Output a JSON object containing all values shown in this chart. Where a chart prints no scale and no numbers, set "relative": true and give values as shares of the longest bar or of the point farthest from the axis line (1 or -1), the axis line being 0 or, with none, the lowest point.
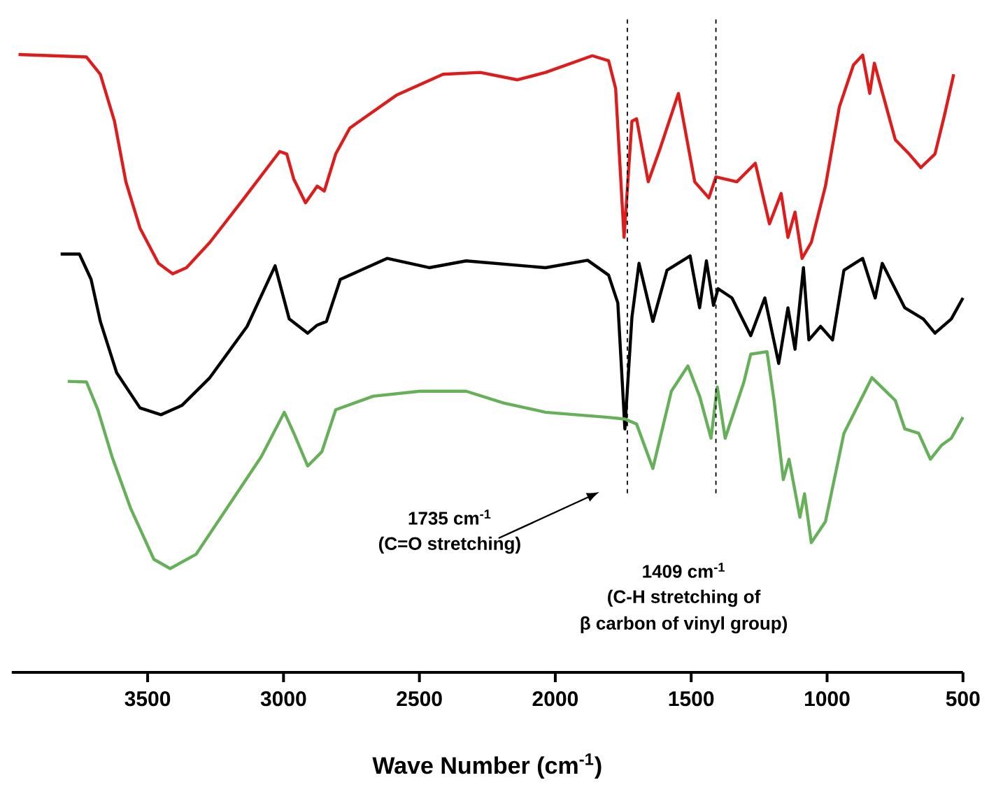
{
  "chart_data": {
    "type": "line",
    "relative": true,
    "xlabel": "Wave Number (cm$^{-1}$)",
    "xlim": [
      4000,
      500
    ],
    "xticks": [
      3500,
      3000,
      2500,
      2000,
      1500,
      1000,
      500
    ],
    "series": [
      {
        "color": "#dd1c1c",
        "x": [
          3975,
          3725,
          3674,
          3622,
          3580,
          3528,
          3460,
          3408,
          3357,
          3271,
          3151,
          3014,
          2988,
          2962,
          2919,
          2876,
          2850,
          2808,
          2756,
          2585,
          2413,
          2276,
          2139,
          2036,
          1864,
          1804,
          1778,
          1747,
          1718,
          1701,
          1658,
          1615,
          1547,
          1487,
          1435,
          1409,
          1332,
          1264,
          1212,
          1169,
          1144,
          1118,
          1092,
          1058,
          1006,
          955,
          903,
          869,
          843,
          826,
          749,
          698,
          655,
          603,
          569,
          534
        ],
        "values": [
          1.0,
          0.996,
          0.968,
          0.892,
          0.794,
          0.719,
          0.662,
          0.645,
          0.655,
          0.696,
          0.764,
          0.843,
          0.839,
          0.798,
          0.76,
          0.787,
          0.779,
          0.839,
          0.881,
          0.934,
          0.968,
          0.971,
          0.959,
          0.971,
          0.998,
          0.99,
          0.945,
          0.704,
          0.892,
          0.896,
          0.794,
          0.847,
          0.937,
          0.794,
          0.768,
          0.802,
          0.794,
          0.824,
          0.726,
          0.775,
          0.704,
          0.745,
          0.67,
          0.696,
          0.787,
          0.915,
          0.983,
          0.999,
          0.937,
          0.986,
          0.862,
          0.839,
          0.817,
          0.839,
          0.9,
          0.968
        ]
      },
      {
        "color": "#000000",
        "x": [
          3820,
          3751,
          3708,
          3674,
          3614,
          3528,
          3451,
          3374,
          3271,
          3134,
          3031,
          2979,
          2911,
          2876,
          2842,
          2791,
          2619,
          2464,
          2328,
          2036,
          1881,
          1804,
          1770,
          1744,
          1718,
          1692,
          1641,
          1589,
          1504,
          1469,
          1444,
          1418,
          1401,
          1350,
          1281,
          1229,
          1178,
          1144,
          1118,
          1087,
          1067,
          1024,
          980,
          938,
          869,
          823,
          797,
          714,
          646,
          603,
          543,
          500
        ],
        "values": [
          0.677,
          0.677,
          0.636,
          0.568,
          0.485,
          0.428,
          0.417,
          0.432,
          0.477,
          0.56,
          0.658,
          0.572,
          0.549,
          0.562,
          0.568,
          0.636,
          0.67,
          0.655,
          0.666,
          0.655,
          0.667,
          0.643,
          0.598,
          0.394,
          0.575,
          0.662,
          0.568,
          0.651,
          0.674,
          0.59,
          0.666,
          0.594,
          0.621,
          0.606,
          0.545,
          0.606,
          0.5,
          0.59,
          0.523,
          0.655,
          0.538,
          0.56,
          0.538,
          0.651,
          0.67,
          0.606,
          0.662,
          0.59,
          0.572,
          0.549,
          0.572,
          0.606
        ]
      },
      {
        "color": "#66b05a",
        "x": [
          3794,
          3725,
          3683,
          3631,
          3563,
          3477,
          3417,
          3322,
          3185,
          3082,
          2997,
          2962,
          2911,
          2859,
          2808,
          2670,
          2499,
          2328,
          2190,
          2036,
          1813,
          1744,
          1701,
          1641,
          1573,
          1512,
          1469,
          1427,
          1404,
          1375,
          1306,
          1281,
          1221,
          1195,
          1161,
          1140,
          1100,
          1083,
          1058,
          1006,
          938,
          835,
          749,
          714,
          663,
          620,
          578,
          543,
          500
        ],
        "values": [
          0.471,
          0.47,
          0.425,
          0.349,
          0.266,
          0.183,
          0.168,
          0.191,
          0.281,
          0.349,
          0.421,
          0.387,
          0.334,
          0.357,
          0.425,
          0.447,
          0.455,
          0.455,
          0.436,
          0.421,
          0.413,
          0.41,
          0.402,
          0.33,
          0.455,
          0.496,
          0.447,
          0.379,
          0.462,
          0.379,
          0.47,
          0.515,
          0.519,
          0.44,
          0.312,
          0.345,
          0.251,
          0.289,
          0.21,
          0.244,
          0.387,
          0.477,
          0.44,
          0.394,
          0.387,
          0.345,
          0.368,
          0.379,
          0.413
        ]
      }
    ],
    "ref_lines": [
      {
        "axis": "x",
        "value": 1735,
        "color": "#000000",
        "line_style": "dashed"
      },
      {
        "axis": "x",
        "value": 1409,
        "color": "#000000",
        "line_style": "dashed"
      }
    ],
    "annotations": [
      "1735 cm$^{-1}$",
      "(C=O stretching)",
      "1409 cm$^{-1}$",
      "(C-H stretching of",
      "β carbon of vinyl group)"
    ]
  }
}
